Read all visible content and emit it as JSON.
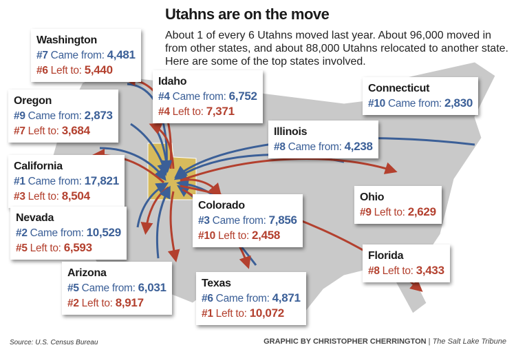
{
  "title": "Utahns are on the move",
  "intro": "About 1 of every 6 Utahns moved last year. About 96,000 moved in from other states, and about 88,000 Utahns relocated to another state. Here are some of the top states involved.",
  "labels": {
    "came": "Came from:",
    "left": "Left to:"
  },
  "colors": {
    "came_from": "#3b5f97",
    "left_to": "#b3402e",
    "map": "#c9c9c9",
    "utah": "#d7bb5c"
  },
  "states": [
    {
      "name": "Washington",
      "came_rank": "#7",
      "came": "4,481",
      "left_rank": "#6",
      "left": "5,440"
    },
    {
      "name": "Idaho",
      "came_rank": "#4",
      "came": "6,752",
      "left_rank": "#4",
      "left": "7,371"
    },
    {
      "name": "Oregon",
      "came_rank": "#9",
      "came": "2,873",
      "left_rank": "#7",
      "left": "3,684"
    },
    {
      "name": "Connecticut",
      "came_rank": "#10",
      "came": "2,830"
    },
    {
      "name": "Illinois",
      "came_rank": "#8",
      "came": "4,238"
    },
    {
      "name": "California",
      "came_rank": "#1",
      "came": "17,821",
      "left_rank": "#3",
      "left": "8,504"
    },
    {
      "name": "Ohio",
      "left_rank": "#9",
      "left": "2,629"
    },
    {
      "name": "Nevada",
      "came_rank": "#2",
      "came": "10,529",
      "left_rank": "#5",
      "left": "6,593"
    },
    {
      "name": "Colorado",
      "came_rank": "#3",
      "came": "7,856",
      "left_rank": "#10",
      "left": "2,458"
    },
    {
      "name": "Florida",
      "left_rank": "#8",
      "left": "3,433"
    },
    {
      "name": "Arizona",
      "came_rank": "#5",
      "came": "6,031",
      "left_rank": "#2",
      "left": "8,917"
    },
    {
      "name": "Texas",
      "came_rank": "#6",
      "came": "4,871",
      "left_rank": "#1",
      "left": "10,072"
    }
  ],
  "source": "Source: U.S. Census Bureau",
  "credit": {
    "byline": "GRAPHIC BY CHRISTOPHER CHERRINGTON",
    "sep": "|",
    "publication": "The Salt Lake Tribune"
  }
}
